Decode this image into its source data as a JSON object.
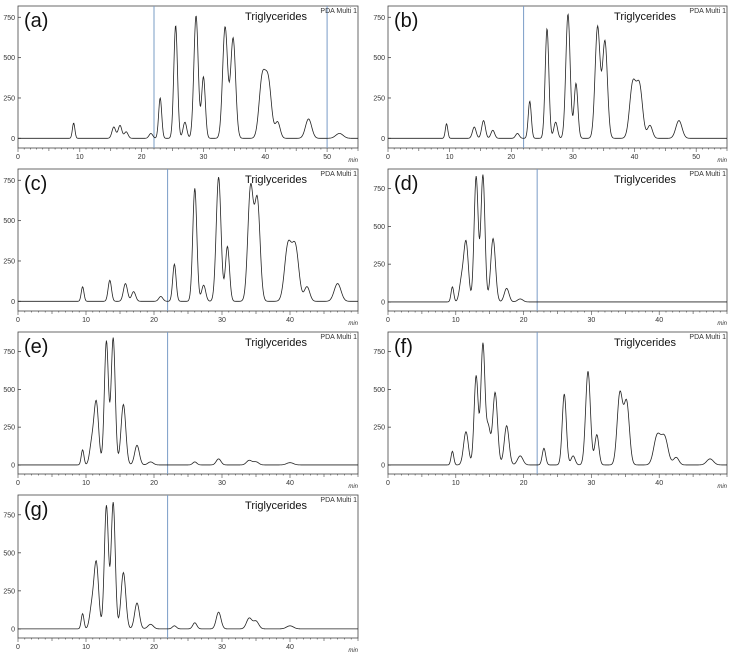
{
  "compound_label": "Triglycerides",
  "detector_label": "PDA Multi 1",
  "x_unit": "min",
  "chart_data": [
    {
      "type": "line",
      "panel_label": "(a)",
      "xlim": [
        0,
        55
      ],
      "ylim": [
        -60,
        820
      ],
      "xticks": [
        0,
        10,
        20,
        30,
        40,
        50
      ],
      "yticks": [
        0,
        250,
        500,
        750
      ],
      "marker_lines": [
        22,
        50
      ],
      "peaks": [
        [
          9,
          95,
          0.2
        ],
        [
          15.5,
          70,
          0.3
        ],
        [
          16.5,
          80,
          0.3
        ],
        [
          17.5,
          40,
          0.3
        ],
        [
          21.5,
          30,
          0.3
        ],
        [
          23,
          250,
          0.25
        ],
        [
          25.5,
          700,
          0.3
        ],
        [
          27,
          100,
          0.3
        ],
        [
          28.8,
          760,
          0.35
        ],
        [
          30,
          380,
          0.3
        ],
        [
          33.5,
          690,
          0.4
        ],
        [
          34.8,
          620,
          0.4
        ],
        [
          39.5,
          360,
          0.5
        ],
        [
          40.5,
          340,
          0.5
        ],
        [
          42,
          100,
          0.4
        ],
        [
          47,
          120,
          0.5
        ],
        [
          52,
          30,
          0.6
        ]
      ]
    },
    {
      "type": "line",
      "panel_label": "(b)",
      "xlim": [
        0,
        55
      ],
      "ylim": [
        -60,
        820
      ],
      "xticks": [
        0,
        10,
        20,
        30,
        40,
        50
      ],
      "yticks": [
        0,
        250,
        500,
        750
      ],
      "marker_lines": [
        22
      ],
      "peaks": [
        [
          9.5,
          90,
          0.2
        ],
        [
          14,
          70,
          0.3
        ],
        [
          15.5,
          110,
          0.3
        ],
        [
          17,
          50,
          0.3
        ],
        [
          21,
          30,
          0.3
        ],
        [
          23,
          230,
          0.25
        ],
        [
          25.8,
          680,
          0.3
        ],
        [
          27.2,
          100,
          0.3
        ],
        [
          29.2,
          770,
          0.35
        ],
        [
          30.5,
          340,
          0.3
        ],
        [
          34,
          690,
          0.4
        ],
        [
          35.2,
          600,
          0.4
        ],
        [
          39.7,
          330,
          0.5
        ],
        [
          40.8,
          320,
          0.5
        ],
        [
          42.5,
          80,
          0.4
        ],
        [
          47.2,
          110,
          0.5
        ]
      ]
    },
    {
      "type": "line",
      "panel_label": "(c)",
      "xlim": [
        0,
        50
      ],
      "ylim": [
        -60,
        820
      ],
      "xticks": [
        0,
        10,
        20,
        30,
        40
      ],
      "yticks": [
        0,
        250,
        500,
        750
      ],
      "marker_lines": [
        22
      ],
      "peaks": [
        [
          9.5,
          90,
          0.2
        ],
        [
          13.5,
          130,
          0.25
        ],
        [
          15.8,
          110,
          0.3
        ],
        [
          17,
          60,
          0.3
        ],
        [
          21,
          30,
          0.3
        ],
        [
          23,
          230,
          0.25
        ],
        [
          26,
          700,
          0.3
        ],
        [
          27.3,
          100,
          0.3
        ],
        [
          29.5,
          770,
          0.35
        ],
        [
          30.8,
          340,
          0.3
        ],
        [
          34.2,
          700,
          0.4
        ],
        [
          35.2,
          620,
          0.4
        ],
        [
          39.7,
          340,
          0.5
        ],
        [
          40.8,
          330,
          0.5
        ],
        [
          42.5,
          90,
          0.4
        ],
        [
          47,
          110,
          0.5
        ]
      ]
    },
    {
      "type": "line",
      "panel_label": "(d)",
      "xlim": [
        0,
        50
      ],
      "ylim": [
        -60,
        880
      ],
      "xticks": [
        0,
        10,
        20,
        30,
        40
      ],
      "yticks": [
        0,
        250,
        500,
        750
      ],
      "marker_lines": [
        22
      ],
      "peaks": [
        [
          9.5,
          100,
          0.2
        ],
        [
          10.8,
          120,
          0.3
        ],
        [
          11.5,
          400,
          0.35
        ],
        [
          13,
          830,
          0.3
        ],
        [
          14,
          840,
          0.3
        ],
        [
          15.5,
          420,
          0.35
        ],
        [
          17.5,
          90,
          0.35
        ],
        [
          19.5,
          20,
          0.4
        ]
      ]
    },
    {
      "type": "line",
      "panel_label": "(e)",
      "xlim": [
        0,
        50
      ],
      "ylim": [
        -60,
        880
      ],
      "xticks": [
        0,
        10,
        20,
        30,
        40
      ],
      "yticks": [
        0,
        250,
        500,
        750
      ],
      "marker_lines": [
        22
      ],
      "peaks": [
        [
          9.5,
          100,
          0.2
        ],
        [
          10.8,
          120,
          0.3
        ],
        [
          11.5,
          420,
          0.35
        ],
        [
          13,
          820,
          0.3
        ],
        [
          14,
          840,
          0.3
        ],
        [
          15.5,
          400,
          0.35
        ],
        [
          17.5,
          130,
          0.35
        ],
        [
          19.5,
          20,
          0.4
        ],
        [
          26,
          20,
          0.3
        ],
        [
          29.5,
          40,
          0.35
        ],
        [
          34,
          30,
          0.4
        ],
        [
          35,
          20,
          0.4
        ],
        [
          40,
          15,
          0.5
        ]
      ]
    },
    {
      "type": "line",
      "panel_label": "(f)",
      "xlim": [
        0,
        50
      ],
      "ylim": [
        -60,
        880
      ],
      "xticks": [
        0,
        10,
        20,
        30,
        40
      ],
      "yticks": [
        0,
        250,
        500,
        750
      ],
      "marker_lines": [
        22
      ],
      "peaks": [
        [
          9.5,
          90,
          0.2
        ],
        [
          11.5,
          220,
          0.35
        ],
        [
          13,
          590,
          0.3
        ],
        [
          14,
          800,
          0.3
        ],
        [
          14.8,
          240,
          0.3
        ],
        [
          15.8,
          480,
          0.35
        ],
        [
          17.5,
          260,
          0.35
        ],
        [
          19.5,
          60,
          0.4
        ],
        [
          23,
          110,
          0.25
        ],
        [
          26,
          470,
          0.3
        ],
        [
          27.3,
          60,
          0.3
        ],
        [
          29.5,
          620,
          0.35
        ],
        [
          30.8,
          200,
          0.3
        ],
        [
          34.2,
          470,
          0.4
        ],
        [
          35.2,
          410,
          0.4
        ],
        [
          39.7,
          190,
          0.5
        ],
        [
          40.8,
          180,
          0.5
        ],
        [
          42.5,
          50,
          0.4
        ],
        [
          47.5,
          40,
          0.5
        ]
      ]
    },
    {
      "type": "line",
      "panel_label": "(g)",
      "xlim": [
        0,
        50
      ],
      "ylim": [
        -60,
        880
      ],
      "xticks": [
        0,
        10,
        20,
        30,
        40
      ],
      "yticks": [
        0,
        250,
        500,
        750
      ],
      "marker_lines": [
        22
      ],
      "peaks": [
        [
          9.5,
          100,
          0.2
        ],
        [
          10.8,
          120,
          0.3
        ],
        [
          11.5,
          440,
          0.35
        ],
        [
          13,
          810,
          0.3
        ],
        [
          14,
          830,
          0.3
        ],
        [
          15.5,
          370,
          0.35
        ],
        [
          17.5,
          170,
          0.35
        ],
        [
          19.5,
          30,
          0.4
        ],
        [
          23,
          20,
          0.3
        ],
        [
          26,
          40,
          0.3
        ],
        [
          29.5,
          110,
          0.35
        ],
        [
          34,
          70,
          0.4
        ],
        [
          35,
          50,
          0.4
        ],
        [
          40,
          20,
          0.5
        ]
      ]
    }
  ]
}
